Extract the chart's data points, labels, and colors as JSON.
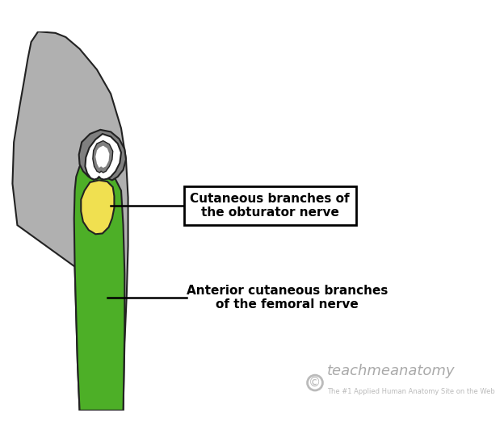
{
  "bg_color": "#ffffff",
  "gray_color": "#b0b0b0",
  "dark_gray_color": "#808080",
  "green_color": "#4daf27",
  "yellow_color": "#f0e050",
  "white_color": "#ffffff",
  "outline_color": "#222222",
  "label1_text": "Cutaneous branches of\nthe obturator nerve",
  "label2_text": "Anterior cutaneous branches\nof the femoral nerve",
  "watermark_text": "teachmeanatomy",
  "watermark_sub": "The #1 Applied Human Anatomy Site on the Web",
  "label_fontsize": 11,
  "watermark_fontsize": 13
}
